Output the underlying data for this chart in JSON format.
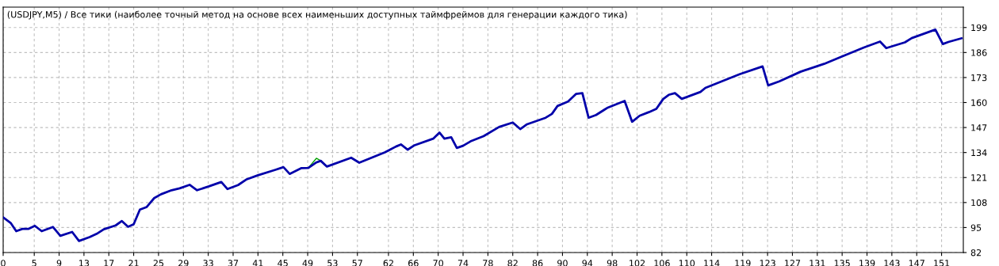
{
  "chart_data": {
    "type": "line",
    "title": "(USDJPY,M5) / Все тики (наиболее точный метод на основе всех наименьших доступных таймфреймов для генерации каждого тика)",
    "series": [
      {
        "color": "#0000aa",
        "x": [
          0,
          1.2,
          2.1,
          3.1,
          4.1,
          5.1,
          6.2,
          8.0,
          9.2,
          11.1,
          12.2,
          13.9,
          15.2,
          16.2,
          18.1,
          19.1,
          20.1,
          21.0,
          22.0,
          23.1,
          24.3,
          25.4,
          27.1,
          28.4,
          30.0,
          31.2,
          33.1,
          35.1,
          36.1,
          37.8,
          39.2,
          41.0,
          43.7,
          45.1,
          46.1,
          48.0,
          49.1,
          50.3,
          51.1,
          52.1,
          56.0,
          57.3,
          61.4,
          62.2,
          63.2,
          64.0,
          65.1,
          66.2,
          69.2,
          70.2,
          71.0,
          72.1,
          73.0,
          74.0,
          75.2,
          77.3,
          79.8,
          82.0,
          83.2,
          84.3,
          87.3,
          88.3,
          89.2,
          90.9,
          92.2,
          93.2,
          94.2,
          95.4,
          97.2,
          100.0,
          101.2,
          102.4,
          103.9,
          105.1,
          106.2,
          107.1,
          108.1,
          109.2,
          112.2,
          113.0,
          118.5,
          122.2,
          123.1,
          124.9,
          128.3,
          132.1,
          134.7,
          138.5,
          141.1,
          142.1,
          145.1,
          146.2,
          150.0,
          151.2,
          152.1,
          154.2
        ],
        "values": [
          100.3,
          97.4,
          93.1,
          94.3,
          94.3,
          95.9,
          93.1,
          95.3,
          90.7,
          92.7,
          88.0,
          90.0,
          92.0,
          94.1,
          96.1,
          98.4,
          95.4,
          96.7,
          104.3,
          105.7,
          110.3,
          112.3,
          114.4,
          115.4,
          117.2,
          114.4,
          116.4,
          118.7,
          115.0,
          117.1,
          120.1,
          122.2,
          124.9,
          126.4,
          122.9,
          125.9,
          126.0,
          128.7,
          129.7,
          126.7,
          131.3,
          128.7,
          134.1,
          135.4,
          137.1,
          138.2,
          135.5,
          137.8,
          141.2,
          144.4,
          141.2,
          141.9,
          136.4,
          137.5,
          139.8,
          142.5,
          147.3,
          149.6,
          146.2,
          148.7,
          152.1,
          154.1,
          158.2,
          160.5,
          164.5,
          164.9,
          152.1,
          153.5,
          157.2,
          160.8,
          150.0,
          153.1,
          155.0,
          156.7,
          161.8,
          164.0,
          164.9,
          161.9,
          165.5,
          167.6,
          174.7,
          178.8,
          168.9,
          171.0,
          176.0,
          180.1,
          183.6,
          188.6,
          191.7,
          188.3,
          191.3,
          193.5,
          197.9,
          190.4,
          191.5,
          193.4
        ]
      },
      {
        "color": "#00a000",
        "x": [
          49.1,
          50.4,
          51.1
        ],
        "values": [
          126.0,
          131.0,
          129.7
        ]
      }
    ],
    "xlim": [
      0,
      154.5
    ],
    "xticks": [
      0,
      5,
      9,
      13,
      17,
      21,
      25,
      29,
      33,
      37,
      41,
      45,
      49,
      53,
      57,
      62,
      66,
      70,
      74,
      78,
      82,
      86,
      90,
      94,
      98,
      102,
      106,
      110,
      114,
      119,
      123,
      127,
      131,
      135,
      139,
      143,
      147,
      151
    ],
    "ylim": [
      82,
      209.6
    ],
    "yticks": [
      82,
      95,
      108,
      121,
      134,
      147,
      160,
      173,
      186,
      199
    ],
    "grid": true,
    "marker": "none",
    "line_style": "solid",
    "legend": false
  }
}
